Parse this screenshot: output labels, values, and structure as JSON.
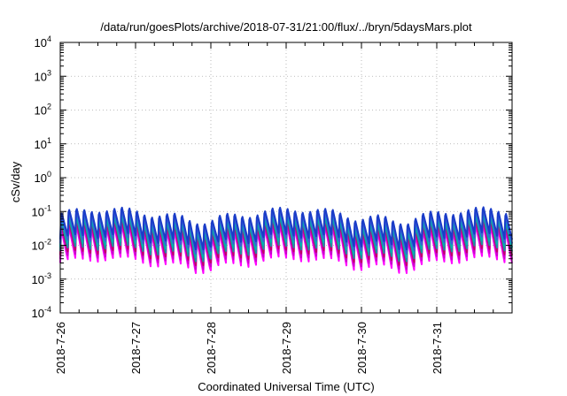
{
  "chart_data": {
    "type": "line",
    "title": "/data/run/goesPlots/archive/2018-07-31/21:00/flux/../bryn/5daysMars.plot",
    "xlabel": "Coordinated Universal Time (UTC)",
    "ylabel": "cSv/day",
    "x_ticks": [
      "2018-7-26",
      "2018-7-27",
      "2018-7-28",
      "2018-7-29",
      "2018-7-30",
      "2018-7-31"
    ],
    "xlim": [
      "2018-07-26T00:00",
      "2018-08-01T00:00"
    ],
    "y_scale": "log",
    "ylim": [
      0.0001,
      10000
    ],
    "y_ticks": [
      {
        "base": "10",
        "exp": "-4"
      },
      {
        "base": "10",
        "exp": "-3"
      },
      {
        "base": "10",
        "exp": "-2"
      },
      {
        "base": "10",
        "exp": "-1"
      },
      {
        "base": "10",
        "exp": "0"
      },
      {
        "base": "10",
        "exp": "1"
      },
      {
        "base": "10",
        "exp": "2"
      },
      {
        "base": "10",
        "exp": "3"
      },
      {
        "base": "10",
        "exp": "4"
      }
    ],
    "grid": true,
    "series_colors": [
      "#ff00ff",
      "#cc00cc",
      "#c0006a",
      "#1e90a0",
      "#00b0b0",
      "#3a5fd8",
      "#1a3cc8"
    ],
    "envelope": {
      "pattern": "sawtooth",
      "period_hours": 2.4,
      "peak_low_series": 0.03,
      "peak_high_series": 0.1,
      "trough_low_series": 0.003,
      "trough_high_series": 0.015
    }
  }
}
